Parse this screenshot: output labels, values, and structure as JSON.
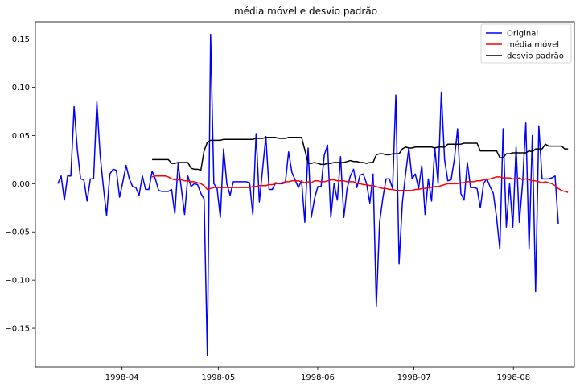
{
  "chart_data": {
    "type": "line",
    "title": "média móvel e desvio padrão",
    "xlabel": "",
    "ylabel": "",
    "x_start": "1998-03-12",
    "x_end": "1998-08-15",
    "xlim": [
      "1998-03-05",
      "1998-08-20"
    ],
    "ylim": [
      -0.19,
      0.168
    ],
    "xticks": [
      "1998-04-01",
      "1998-05-01",
      "1998-06-01",
      "1998-07-01",
      "1998-08-01"
    ],
    "xtick_labels": [
      "1998-04",
      "1998-05",
      "1998-06",
      "1998-07",
      "1998-08"
    ],
    "yticks": [
      -0.15,
      -0.1,
      -0.05,
      0.0,
      0.05,
      0.1,
      0.15
    ],
    "ytick_labels": [
      "−0.15",
      "−0.10",
      "−0.05",
      "0.00",
      "0.05",
      "0.10",
      "0.15"
    ],
    "grid": false,
    "legend": "top-right",
    "series": [
      {
        "name": "Original",
        "color": "#0000ff",
        "values": [
          0.0,
          0.008,
          -0.017,
          0.008,
          0.008,
          0.08,
          0.035,
          0.005,
          0.004,
          -0.018,
          0.005,
          0.005,
          0.085,
          0.03,
          -0.003,
          -0.033,
          0.01,
          0.015,
          0.014,
          -0.014,
          0.002,
          0.019,
          0.005,
          -0.003,
          -0.004,
          -0.012,
          0.008,
          -0.006,
          -0.006,
          0.013,
          0.005,
          -0.007,
          -0.008,
          -0.008,
          -0.008,
          -0.006,
          -0.031,
          0.021,
          -0.005,
          -0.032,
          0.008,
          -0.003,
          0.0,
          -0.001,
          -0.01,
          -0.016,
          -0.178,
          0.155,
          0.0,
          -0.005,
          -0.035,
          0.036,
          0.0,
          -0.012,
          0.002,
          0.002,
          0.002,
          0.002,
          0.002,
          0.001,
          -0.032,
          0.052,
          -0.019,
          0.015,
          0.049,
          -0.006,
          -0.006,
          0.001,
          0.0,
          0.0,
          0.001,
          0.033,
          0.012,
          0.004,
          -0.004,
          0.003,
          -0.04,
          0.037,
          -0.035,
          -0.015,
          -0.003,
          -0.003,
          0.03,
          0.04,
          -0.035,
          0.0,
          -0.017,
          0.028,
          -0.035,
          -0.005,
          0.008,
          0.015,
          -0.004,
          0.009,
          0.01,
          0.0,
          -0.02,
          0.01,
          -0.127,
          -0.04,
          -0.015,
          0.005,
          0.005,
          -0.005,
          0.092,
          -0.083,
          -0.02,
          0.01,
          0.037,
          0.005,
          0.01,
          -0.005,
          0.019,
          -0.032,
          0.005,
          -0.018,
          0.037,
          0.0,
          0.095,
          0.025,
          0.003,
          0.004,
          0.025,
          0.057,
          -0.01,
          -0.017,
          0.022,
          -0.004,
          -0.004,
          -0.005,
          -0.025,
          0.0,
          0.005,
          -0.003,
          -0.01,
          -0.035,
          -0.068,
          0.057,
          -0.045,
          0.0,
          -0.045,
          0.038,
          -0.04,
          0.0,
          0.063,
          -0.068,
          0.05,
          -0.112,
          0.06,
          0.005,
          0.005,
          0.005,
          0.006,
          0.008,
          -0.042
        ]
      },
      {
        "name": "média móvel",
        "color": "#ff0000",
        "start_index": 29,
        "values": [
          0.007,
          0.008,
          0.008,
          0.008,
          0.008,
          0.007,
          0.005,
          0.004,
          0.004,
          0.004,
          0.003,
          0.003,
          0.002,
          0.002,
          0.001,
          0.0,
          -0.002,
          -0.006,
          -0.005,
          -0.004,
          -0.004,
          -0.004,
          -0.004,
          -0.004,
          -0.004,
          -0.004,
          -0.004,
          -0.004,
          -0.004,
          -0.004,
          -0.004,
          -0.003,
          -0.003,
          -0.002,
          -0.002,
          -0.002,
          -0.001,
          -0.001,
          0.0,
          0.0,
          0.001,
          0.002,
          0.002,
          0.003,
          0.003,
          0.003,
          0.002,
          0.001,
          0.002,
          0.001,
          0.003,
          0.003,
          0.002,
          0.002,
          0.003,
          0.004,
          0.004,
          0.003,
          0.003,
          0.003,
          0.002,
          0.002,
          0.002,
          0.0,
          0.0,
          -0.001,
          -0.001,
          -0.002,
          -0.002,
          -0.003,
          -0.004,
          -0.005,
          -0.005,
          -0.006,
          -0.006,
          -0.007,
          -0.007,
          -0.007,
          -0.007,
          -0.007,
          -0.007,
          -0.006,
          -0.006,
          -0.005,
          -0.005,
          -0.004,
          -0.004,
          -0.003,
          -0.003,
          -0.002,
          -0.001,
          0.0,
          0.0,
          0.0,
          0.0,
          0.001,
          0.001,
          0.002,
          0.002,
          0.002,
          0.003,
          0.003,
          0.004,
          0.004,
          0.005,
          0.006,
          0.007,
          0.007,
          0.006,
          0.006,
          0.006,
          0.005,
          0.005,
          0.006,
          0.004,
          0.005,
          0.004,
          0.003,
          0.003,
          0.002,
          0.001,
          0.002,
          0.001,
          0.0,
          -0.002,
          -0.005,
          -0.007,
          -0.008,
          -0.009
        ]
      },
      {
        "name": "desvio padrão",
        "color": "#000000",
        "start_index": 29,
        "values": [
          0.025,
          0.025,
          0.025,
          0.025,
          0.025,
          0.025,
          0.021,
          0.021,
          0.022,
          0.022,
          0.022,
          0.022,
          0.016,
          0.015,
          0.015,
          0.014,
          0.034,
          0.043,
          0.045,
          0.045,
          0.045,
          0.045,
          0.046,
          0.046,
          0.046,
          0.046,
          0.046,
          0.046,
          0.046,
          0.046,
          0.046,
          0.046,
          0.047,
          0.047,
          0.047,
          0.048,
          0.048,
          0.048,
          0.048,
          0.047,
          0.047,
          0.047,
          0.048,
          0.048,
          0.048,
          0.048,
          0.048,
          0.035,
          0.021,
          0.021,
          0.022,
          0.021,
          0.02,
          0.02,
          0.021,
          0.021,
          0.022,
          0.022,
          0.022,
          0.022,
          0.023,
          0.024,
          0.023,
          0.023,
          0.022,
          0.022,
          0.021,
          0.022,
          0.022,
          0.03,
          0.031,
          0.031,
          0.03,
          0.03,
          0.031,
          0.031,
          0.031,
          0.036,
          0.038,
          0.037,
          0.037,
          0.038,
          0.038,
          0.038,
          0.038,
          0.038,
          0.038,
          0.037,
          0.038,
          0.038,
          0.038,
          0.041,
          0.041,
          0.041,
          0.041,
          0.041,
          0.042,
          0.042,
          0.042,
          0.042,
          0.042,
          0.034,
          0.034,
          0.034,
          0.034,
          0.034,
          0.034,
          0.027,
          0.027,
          0.031,
          0.031,
          0.032,
          0.032,
          0.032,
          0.032,
          0.032,
          0.034,
          0.033,
          0.036,
          0.036,
          0.036,
          0.041,
          0.039,
          0.039,
          0.039,
          0.039,
          0.039,
          0.036,
          0.036
        ]
      }
    ]
  }
}
